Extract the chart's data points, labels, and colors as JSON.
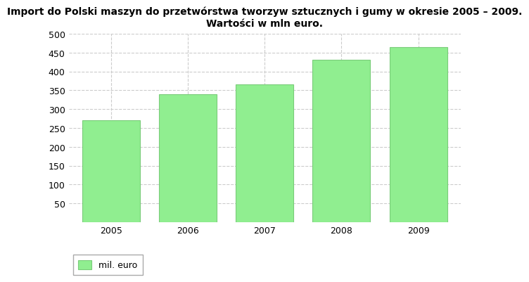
{
  "categories": [
    "2005",
    "2006",
    "2007",
    "2008",
    "2009"
  ],
  "values": [
    270,
    340,
    365,
    430,
    465
  ],
  "bar_color": "#90EE90",
  "bar_edge_color": "#7acc7a",
  "title_line1": "Import do Polski maszyn do przetwórstwa tworzyw sztucznych i gumy w okresie 2005 – 2009.",
  "title_line2": "Wartości w mln euro.",
  "ylim": [
    0,
    500
  ],
  "yticks": [
    50,
    100,
    150,
    200,
    250,
    300,
    350,
    400,
    450,
    500
  ],
  "legend_label": "mil. euro",
  "grid_color": "#cccccc",
  "background_color": "#ffffff",
  "title_fontsize": 10,
  "tick_fontsize": 9,
  "legend_fontsize": 9
}
